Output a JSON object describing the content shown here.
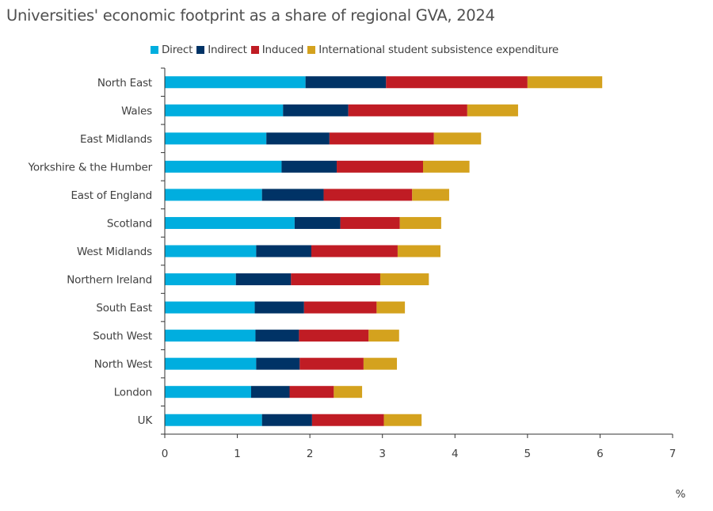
{
  "chart_data": {
    "type": "bar",
    "orientation": "horizontal",
    "stacked": true,
    "title": "Universities' economic footprint as a share of regional GVA, 2024",
    "xlabel": "%",
    "ylabel": "",
    "xlim": [
      0,
      7
    ],
    "xticks": [
      "0",
      "1",
      "2",
      "3",
      "4",
      "5",
      "6",
      "7"
    ],
    "grid": false,
    "legend_position": "top-center",
    "categories": [
      "North East",
      "Wales",
      "East Midlands",
      "Yorkshire & the Humber",
      "East of England",
      "Scotland",
      "West Midlands",
      "Northern Ireland",
      "South East",
      "South West",
      "North West",
      "London",
      "UK"
    ],
    "series": [
      {
        "name": "Direct",
        "color": "#00AEDF",
        "values": [
          1.94,
          1.63,
          1.4,
          1.61,
          1.34,
          1.79,
          1.26,
          0.98,
          1.24,
          1.25,
          1.26,
          1.19,
          1.34
        ]
      },
      {
        "name": "Indirect",
        "color": "#003366",
        "values": [
          1.11,
          0.9,
          0.87,
          0.76,
          0.85,
          0.63,
          0.76,
          0.76,
          0.68,
          0.6,
          0.6,
          0.53,
          0.69
        ]
      },
      {
        "name": "Induced",
        "color": "#C01C24",
        "values": [
          1.95,
          1.64,
          1.44,
          1.19,
          1.22,
          0.82,
          1.19,
          1.23,
          1.0,
          0.96,
          0.88,
          0.61,
          0.99
        ]
      },
      {
        "name": "International student subsistence expenditure",
        "color": "#D4A21E",
        "values": [
          1.03,
          0.7,
          0.65,
          0.64,
          0.51,
          0.57,
          0.59,
          0.67,
          0.39,
          0.42,
          0.46,
          0.39,
          0.52
        ]
      }
    ]
  }
}
